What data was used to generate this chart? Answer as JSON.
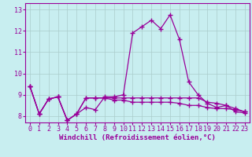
{
  "xlabel": "Windchill (Refroidissement éolien,°C)",
  "background_color": "#c8eef0",
  "line_color": "#990099",
  "grid_color": "#aacccc",
  "xlim": [
    -0.5,
    23.5
  ],
  "ylim": [
    7.7,
    13.3
  ],
  "yticks": [
    8,
    9,
    10,
    11,
    12,
    13
  ],
  "xticks": [
    0,
    1,
    2,
    3,
    4,
    5,
    6,
    7,
    8,
    9,
    10,
    11,
    12,
    13,
    14,
    15,
    16,
    17,
    18,
    19,
    20,
    21,
    22,
    23
  ],
  "series1_x": [
    0,
    1,
    2,
    3,
    4,
    5,
    6,
    7,
    8,
    9,
    10,
    11,
    12,
    13,
    14,
    15,
    16,
    17,
    18,
    19,
    20,
    21,
    22,
    23
  ],
  "series1_y": [
    9.4,
    8.1,
    8.8,
    8.9,
    7.8,
    8.1,
    8.4,
    8.3,
    8.9,
    8.9,
    9.0,
    11.9,
    12.2,
    12.5,
    12.1,
    12.75,
    11.6,
    9.6,
    9.0,
    8.6,
    8.4,
    8.5,
    8.2,
    8.15
  ],
  "series2_x": [
    0,
    1,
    2,
    3,
    4,
    5,
    6,
    7,
    8,
    9,
    10,
    11,
    12,
    13,
    14,
    15,
    16,
    17,
    18,
    19,
    20,
    21,
    22,
    23
  ],
  "series2_y": [
    9.4,
    8.1,
    8.8,
    8.9,
    7.8,
    8.1,
    8.85,
    8.85,
    8.85,
    8.85,
    8.85,
    8.85,
    8.85,
    8.85,
    8.85,
    8.85,
    8.85,
    8.85,
    8.85,
    8.65,
    8.6,
    8.5,
    8.35,
    8.2
  ],
  "series3_x": [
    0,
    1,
    2,
    3,
    4,
    5,
    6,
    7,
    8,
    9,
    10,
    11,
    12,
    13,
    14,
    15,
    16,
    17,
    18,
    19,
    20,
    21,
    22,
    23
  ],
  "series3_y": [
    9.4,
    8.1,
    8.8,
    8.9,
    7.8,
    8.1,
    8.85,
    8.85,
    8.85,
    8.75,
    8.75,
    8.65,
    8.65,
    8.65,
    8.65,
    8.65,
    8.6,
    8.5,
    8.5,
    8.4,
    8.35,
    8.35,
    8.3,
    8.2
  ],
  "marker": "+",
  "markersize": 4,
  "linewidth": 0.9,
  "xlabel_fontsize": 6.5,
  "tick_fontsize": 6.0
}
